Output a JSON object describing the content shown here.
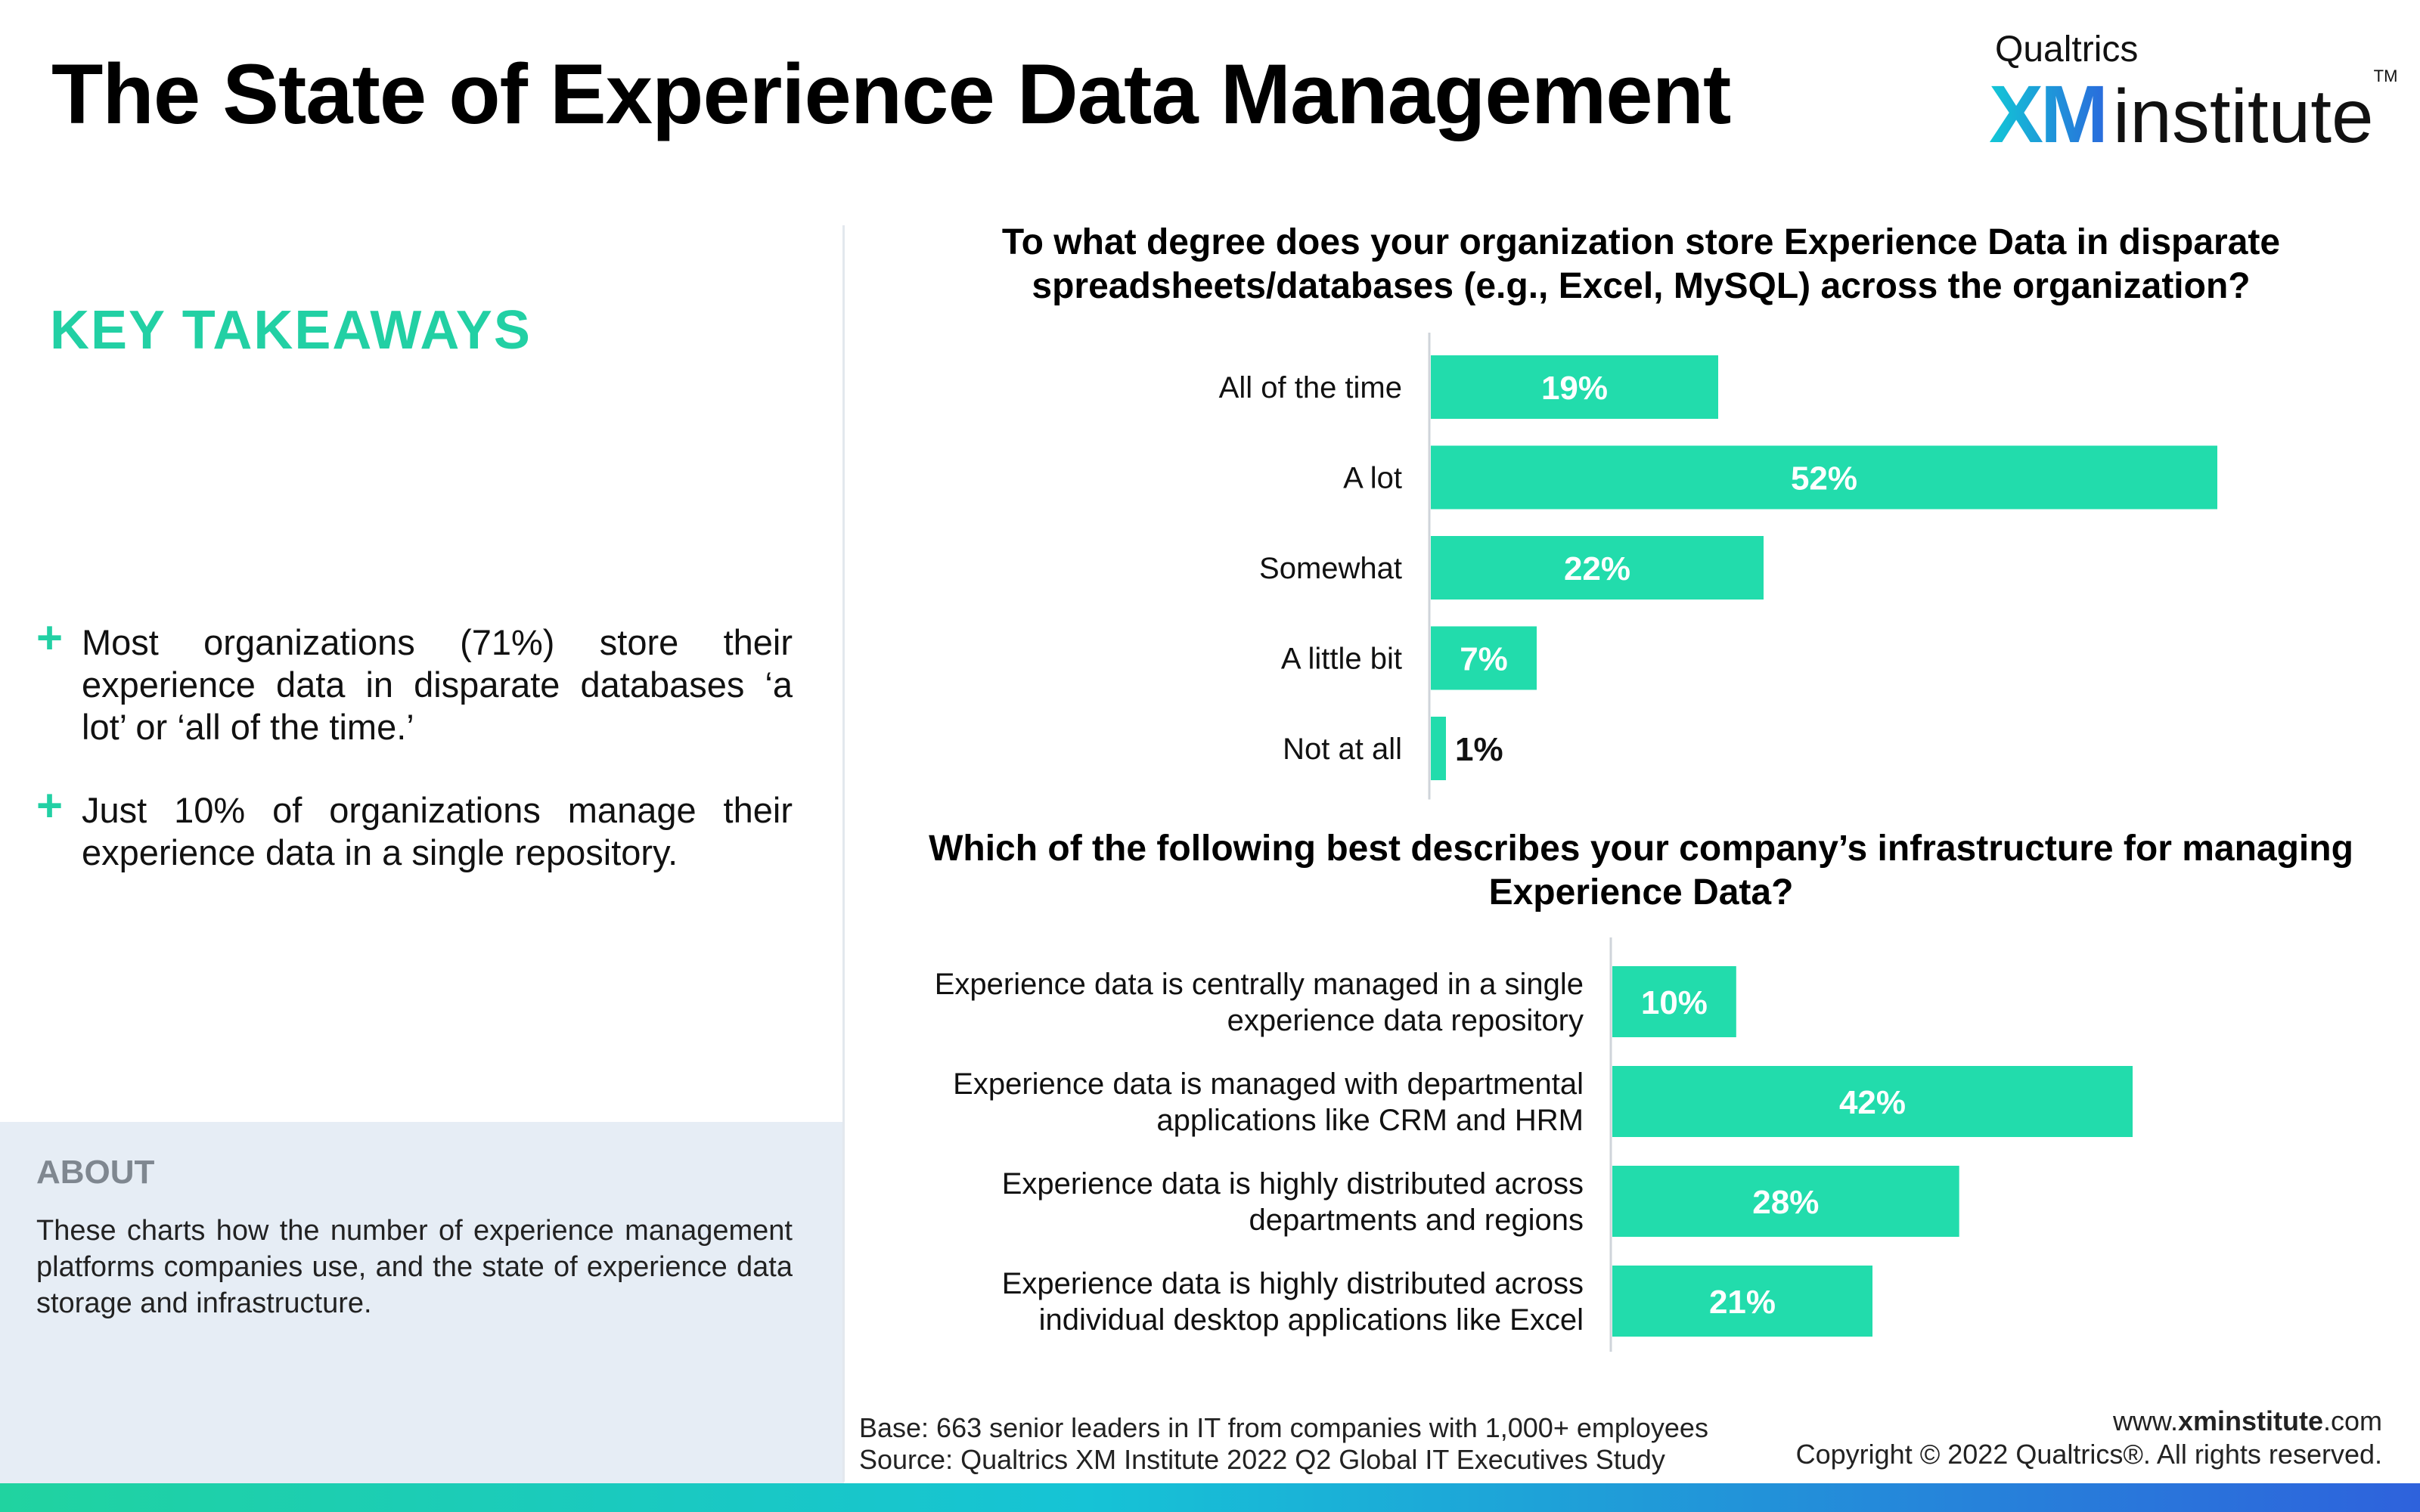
{
  "header": {
    "title": "The State of Experience Data Management",
    "logo": {
      "top": "Qualtrics",
      "xm": "XM",
      "name": "institute",
      "tm": "TM"
    }
  },
  "takeaways": {
    "heading": "KEY TAKEAWAYS",
    "items": [
      "Most organizations (71%) store their experience data in disparate databases ‘a lot’ or ‘all of the time.’",
      "Just 10% of organizations manage their experience data in a single repository."
    ],
    "bullet_glyph": "+"
  },
  "about": {
    "heading": "ABOUT",
    "text": "These charts how the number of experience management platforms companies use, and the state of experience data storage and infrastructure."
  },
  "colors": {
    "accent": "#22d0a4",
    "bar": "#22dcac",
    "about_bg": "#e6edf5",
    "about_heading": "#7f8790"
  },
  "chart_data": [
    {
      "type": "bar",
      "orientation": "horizontal",
      "title": "To what degree does your organization store Experience Data in disparate spreadsheets/databases (e.g., Excel, MySQL) across the organization?",
      "categories": [
        "All of the time",
        "A lot",
        "Somewhat",
        "A little bit",
        "Not at all"
      ],
      "values": [
        19,
        52,
        22,
        7,
        1
      ],
      "value_labels": [
        "19%",
        "52%",
        "22%",
        "7%",
        "1%"
      ],
      "unit": "%",
      "xlim": [
        0,
        52
      ]
    },
    {
      "type": "bar",
      "orientation": "horizontal",
      "title": "Which of the following best describes your company’s infrastructure for managing Experience Data?",
      "categories": [
        [
          "Experience data is centrally managed in a single",
          "experience data repository"
        ],
        [
          "Experience data is managed with departmental",
          "applications like CRM and HRM"
        ],
        [
          "Experience data is highly distributed across",
          "departments and regions"
        ],
        [
          "Experience data is highly distributed across",
          "individual desktop applications like Excel"
        ]
      ],
      "values": [
        10,
        42,
        28,
        21
      ],
      "value_labels": [
        "10%",
        "42%",
        "28%",
        "21%"
      ],
      "unit": "%",
      "xlim": [
        0,
        42
      ]
    }
  ],
  "footer": {
    "base": "Base: 663 senior leaders in IT from companies with 1,000+ employees",
    "source": "Source: Qualtrics XM Institute 2022 Q2 Global IT Executives Study",
    "url_prefix": "www.",
    "url_bold": "xminstitute",
    "url_suffix": ".com",
    "copyright": "Copyright © 2022 Qualtrics®. All rights reserved."
  }
}
